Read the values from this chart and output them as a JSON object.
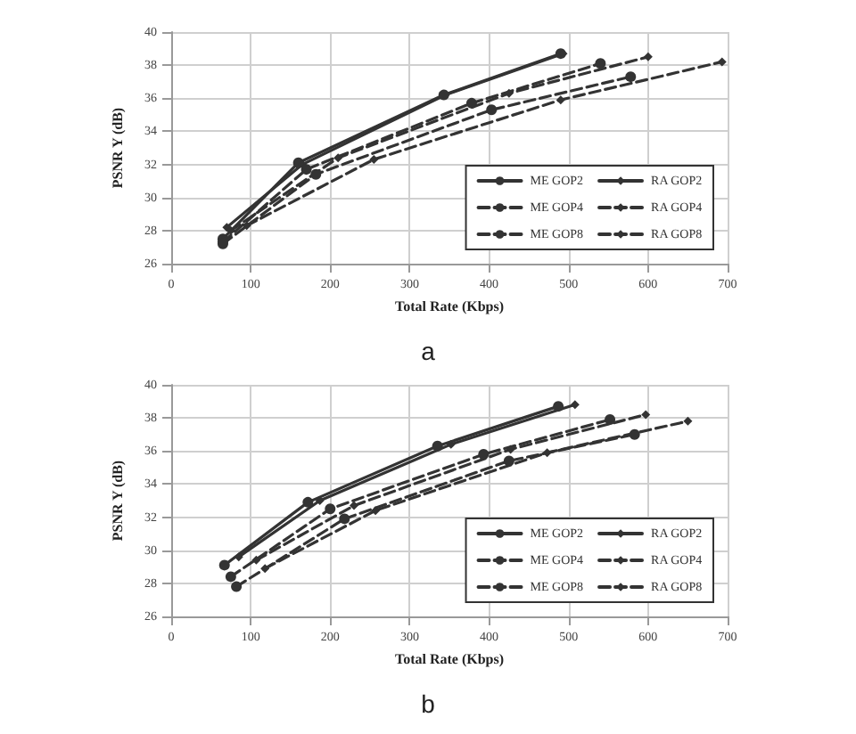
{
  "chart_data": [
    {
      "type": "line",
      "xlabel": "Total Rate (Kbps)",
      "ylabel": "PSNR Y (dB)",
      "xlim": [
        0,
        700
      ],
      "xticks": [
        0,
        100,
        200,
        300,
        400,
        500,
        600,
        700
      ],
      "ylim": [
        26,
        40
      ],
      "yticks": [
        26,
        28,
        30,
        32,
        34,
        36,
        38,
        40
      ],
      "grid": true,
      "legend": "bottom right",
      "annotations": [
        "a"
      ],
      "series": [
        {
          "name": "ME GOP2",
          "color": "#333333",
          "marker": "circle",
          "line_style": "solid",
          "x": [
            65,
            160,
            343,
            490
          ],
          "values": [
            27.5,
            32.1,
            36.2,
            38.7
          ]
        },
        {
          "name": "RA GOP2",
          "color": "#333333",
          "marker": "diamond",
          "line_style": "solid",
          "x": [
            70,
            165,
            345,
            493
          ],
          "values": [
            28.2,
            32.0,
            36.2,
            38.7
          ]
        },
        {
          "name": "ME GOP4",
          "color": "#333333",
          "marker": "circle",
          "line_style": "dashed",
          "x": [
            65,
            170,
            378,
            540
          ],
          "values": [
            27.3,
            31.7,
            35.7,
            38.1
          ]
        },
        {
          "name": "RA GOP4",
          "color": "#333333",
          "marker": "diamond",
          "line_style": "dashed",
          "x": [
            75,
            210,
            425,
            600
          ],
          "values": [
            28.0,
            32.4,
            36.3,
            38.5
          ]
        },
        {
          "name": "ME GOP8",
          "color": "#333333",
          "marker": "circle",
          "line_style": "dashed",
          "x": [
            65,
            182,
            403,
            578
          ],
          "values": [
            27.2,
            31.4,
            35.3,
            37.3
          ]
        },
        {
          "name": "RA GOP8",
          "color": "#333333",
          "marker": "diamond",
          "line_style": "dashed",
          "x": [
            95,
            255,
            490,
            693
          ],
          "values": [
            28.3,
            32.3,
            35.9,
            38.2
          ]
        }
      ]
    },
    {
      "type": "line",
      "xlabel": "Total Rate (Kbps)",
      "ylabel": "PSNR Y (dB)",
      "xlim": [
        0,
        700
      ],
      "xticks": [
        0,
        100,
        200,
        300,
        400,
        500,
        600,
        700
      ],
      "ylim": [
        26,
        40
      ],
      "yticks": [
        26,
        28,
        30,
        32,
        34,
        36,
        38,
        40
      ],
      "grid": true,
      "legend": "bottom right",
      "annotations": [
        "b"
      ],
      "series": [
        {
          "name": "ME GOP2",
          "color": "#333333",
          "marker": "circle",
          "line_style": "solid",
          "x": [
            67,
            172,
            335,
            487
          ],
          "values": [
            29.1,
            32.9,
            36.3,
            38.7
          ]
        },
        {
          "name": "RA GOP2",
          "color": "#333333",
          "marker": "diamond",
          "line_style": "solid",
          "x": [
            85,
            187,
            352,
            508
          ],
          "values": [
            29.6,
            33.0,
            36.4,
            38.8
          ]
        },
        {
          "name": "ME GOP4",
          "color": "#333333",
          "marker": "circle",
          "line_style": "dashed",
          "x": [
            75,
            200,
            393,
            552
          ],
          "values": [
            28.4,
            32.5,
            35.8,
            37.9
          ]
        },
        {
          "name": "RA GOP4",
          "color": "#333333",
          "marker": "diamond",
          "line_style": "dashed",
          "x": [
            107,
            230,
            427,
            597
          ],
          "values": [
            29.4,
            32.7,
            36.1,
            38.2
          ]
        },
        {
          "name": "ME GOP8",
          "color": "#333333",
          "marker": "circle",
          "line_style": "dashed",
          "x": [
            82,
            218,
            425,
            583
          ],
          "values": [
            27.8,
            31.9,
            35.4,
            37.0
          ]
        },
        {
          "name": "RA GOP8",
          "color": "#333333",
          "marker": "diamond",
          "line_style": "dashed",
          "x": [
            118,
            257,
            473,
            650
          ],
          "values": [
            28.9,
            32.4,
            35.9,
            37.8
          ]
        }
      ]
    }
  ]
}
